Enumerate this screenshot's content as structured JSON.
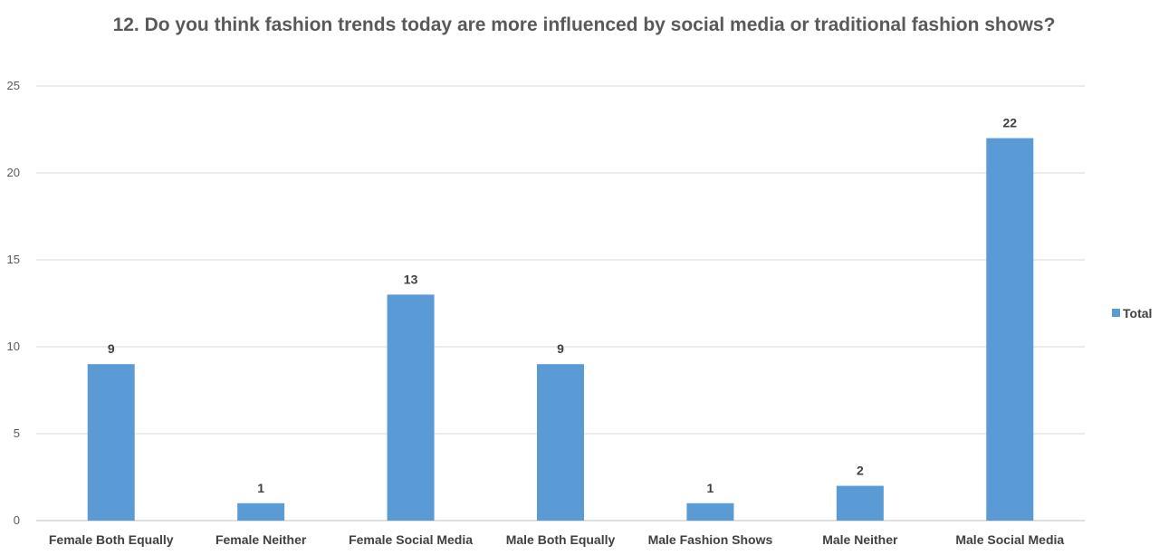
{
  "chart_data": {
    "type": "bar",
    "title": "12.  Do you think fashion trends today are more influenced by social media or traditional fashion shows?",
    "categories": [
      "Female Both Equally",
      "Female Neither",
      "Female Social Media",
      "Male Both Equally",
      "Male Fashion Shows",
      "Male Neither",
      "Male Social Media"
    ],
    "series": [
      {
        "name": "Total",
        "values": [
          9,
          1,
          13,
          9,
          1,
          2,
          22
        ],
        "color": "#5b9bd5"
      }
    ],
    "xlabel": "",
    "ylabel": "",
    "ylim": [
      0,
      25
    ],
    "yticks": [
      0,
      5,
      10,
      15,
      20,
      25
    ],
    "grid": true,
    "legend": "right",
    "data_labels": true
  }
}
